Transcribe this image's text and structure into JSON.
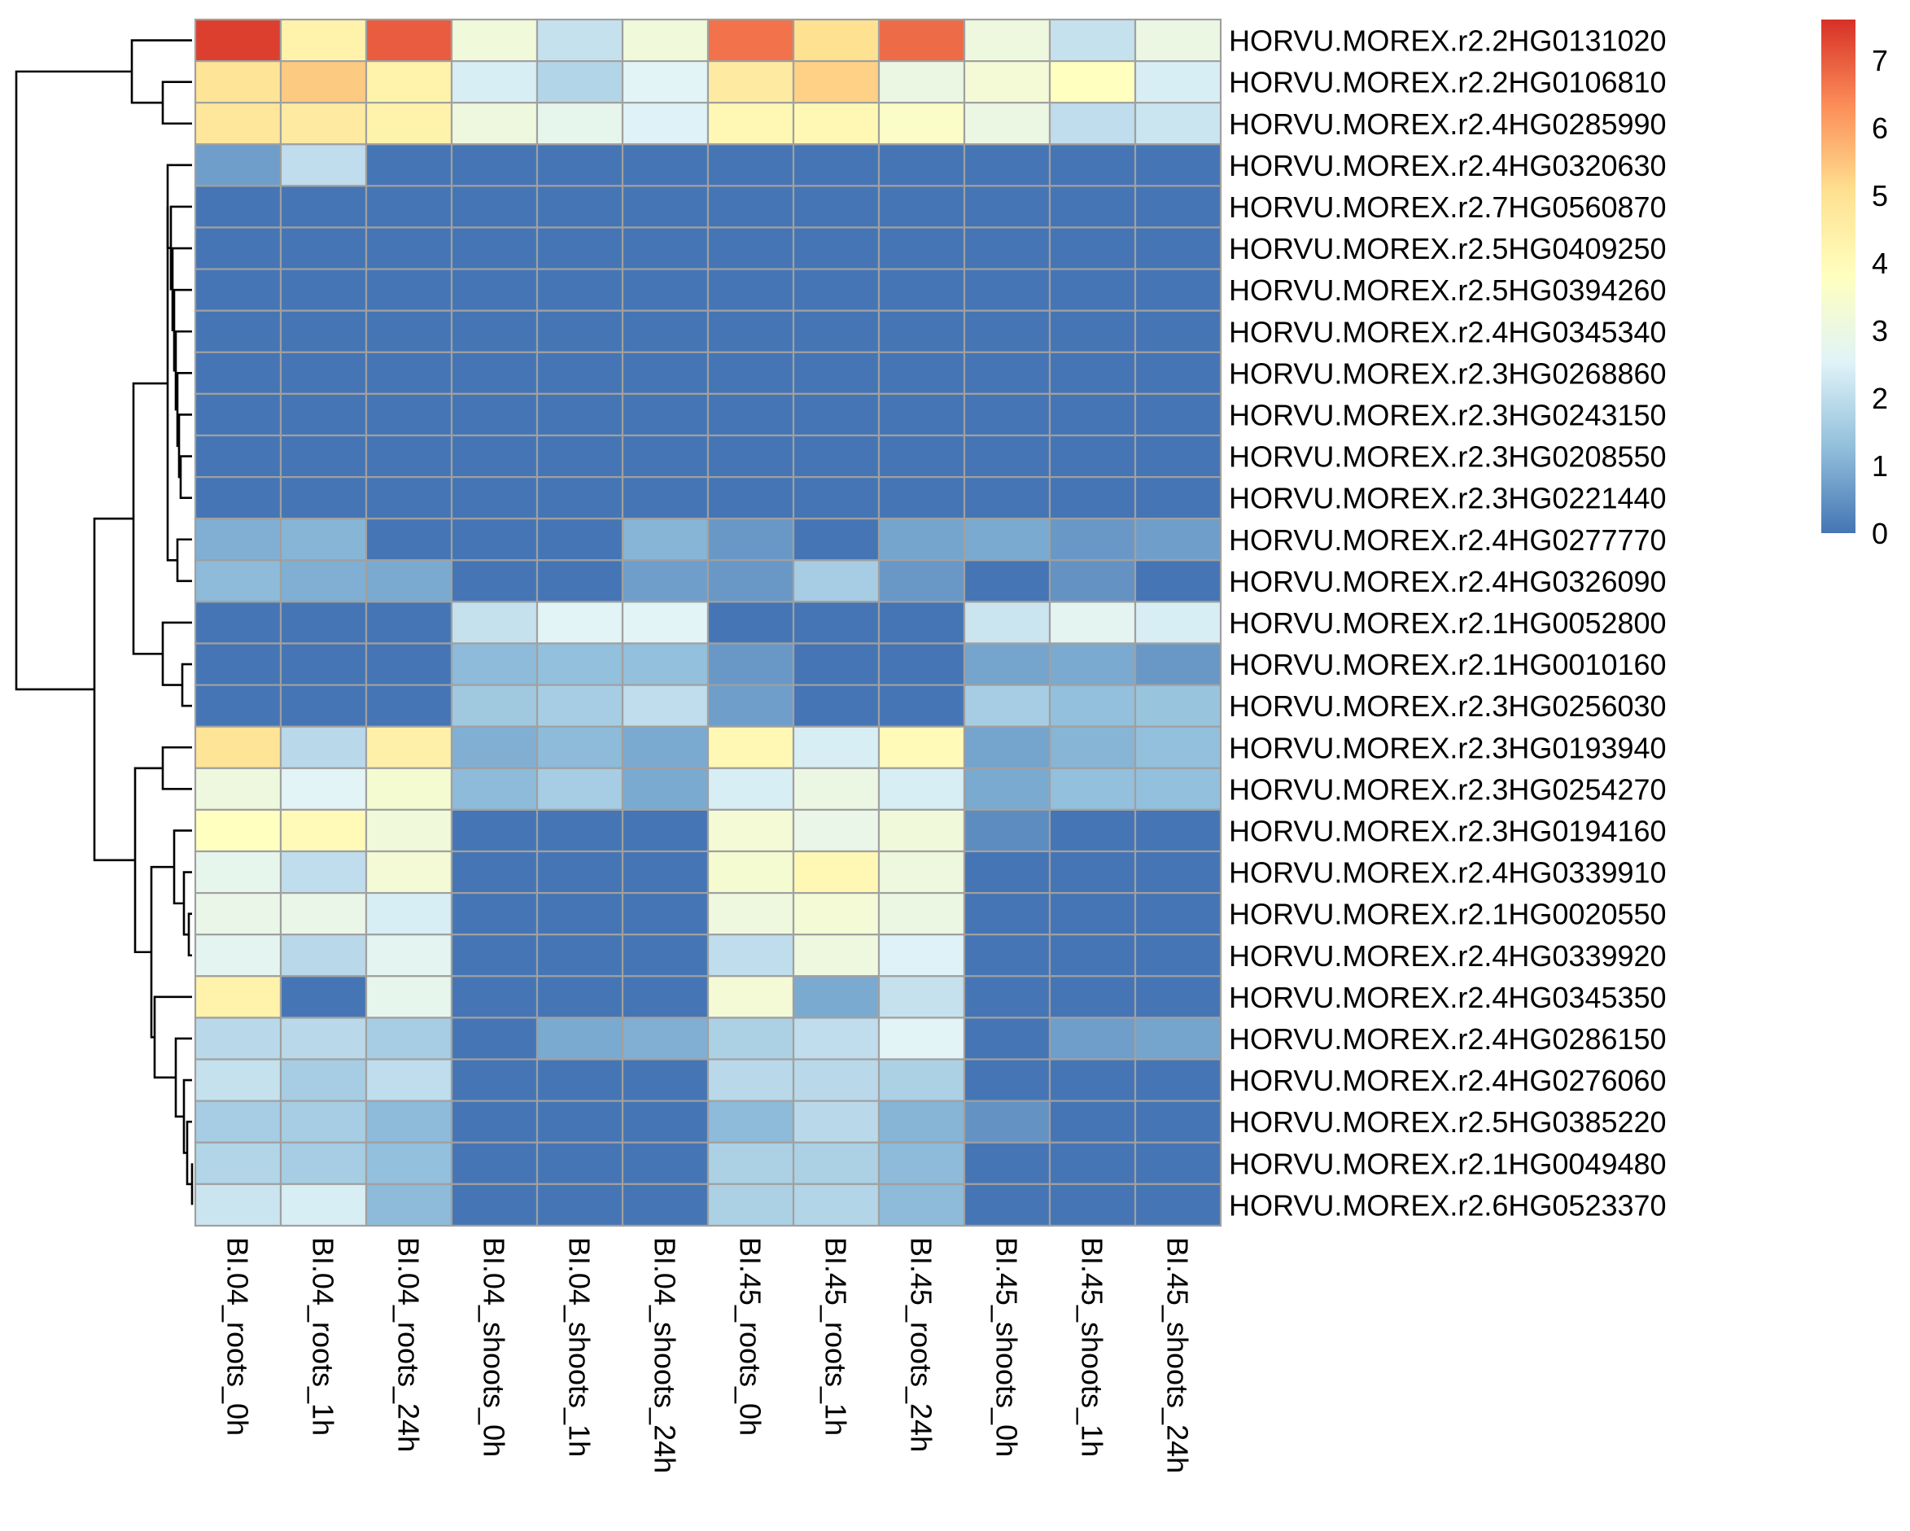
{
  "chart_data": {
    "type": "heatmap",
    "title": "",
    "xlabel": "",
    "ylabel": "",
    "columns": [
      "BI.04_roots_0h",
      "BI.04_roots_1h",
      "BI.04_roots_24h",
      "BI.04_shoots_0h",
      "BI.04_shoots_1h",
      "BI.04_shoots_24h",
      "BI.45_roots_0h",
      "BI.45_roots_1h",
      "BI.45_roots_24h",
      "BI.45_shoots_0h",
      "BI.45_shoots_1h",
      "BI.45_shoots_24h"
    ],
    "rows": [
      "HORVU.MOREX.r2.2HG0131020",
      "HORVU.MOREX.r2.2HG0106810",
      "HORVU.MOREX.r2.4HG0285990",
      "HORVU.MOREX.r2.4HG0320630",
      "HORVU.MOREX.r2.7HG0560870",
      "HORVU.MOREX.r2.5HG0409250",
      "HORVU.MOREX.r2.5HG0394260",
      "HORVU.MOREX.r2.4HG0345340",
      "HORVU.MOREX.r2.3HG0268860",
      "HORVU.MOREX.r2.3HG0243150",
      "HORVU.MOREX.r2.3HG0208550",
      "HORVU.MOREX.r2.3HG0221440",
      "HORVU.MOREX.r2.4HG0277770",
      "HORVU.MOREX.r2.4HG0326090",
      "HORVU.MOREX.r2.1HG0052800",
      "HORVU.MOREX.r2.1HG0010160",
      "HORVU.MOREX.r2.3HG0256030",
      "HORVU.MOREX.r2.3HG0193940",
      "HORVU.MOREX.r2.3HG0254270",
      "HORVU.MOREX.r2.3HG0194160",
      "HORVU.MOREX.r2.4HG0339910",
      "HORVU.MOREX.r2.1HG0020550",
      "HORVU.MOREX.r2.4HG0339920",
      "HORVU.MOREX.r2.4HG0345350",
      "HORVU.MOREX.r2.4HG0286150",
      "HORVU.MOREX.r2.4HG0276060",
      "HORVU.MOREX.r2.5HG0385220",
      "HORVU.MOREX.r2.1HG0049480",
      "HORVU.MOREX.r2.6HG0523370"
    ],
    "values": [
      [
        7.4,
        4.3,
        7.0,
        3.2,
        2.1,
        3.2,
        6.7,
        5.0,
        6.8,
        3.1,
        2.1,
        3.0
      ],
      [
        4.9,
        5.4,
        4.3,
        2.4,
        1.8,
        2.6,
        4.6,
        5.3,
        3.0,
        3.3,
        3.8,
        2.4
      ],
      [
        4.8,
        4.6,
        4.3,
        3.1,
        2.8,
        2.5,
        4.1,
        4.1,
        3.6,
        3.0,
        2.0,
        2.2
      ],
      [
        0.7,
        2.0,
        0.0,
        0.0,
        0.0,
        0.0,
        0.0,
        0.0,
        0.0,
        0.0,
        0.0,
        0.0
      ],
      [
        0.0,
        0.0,
        0.0,
        0.0,
        0.0,
        0.0,
        0.0,
        0.0,
        0.0,
        0.0,
        0.0,
        0.0
      ],
      [
        0.0,
        0.0,
        0.0,
        0.0,
        0.0,
        0.0,
        0.0,
        0.0,
        0.0,
        0.0,
        0.0,
        0.0
      ],
      [
        0.0,
        0.0,
        0.0,
        0.0,
        0.0,
        0.0,
        0.0,
        0.0,
        0.0,
        0.0,
        0.0,
        0.0
      ],
      [
        0.0,
        0.0,
        0.0,
        0.0,
        0.0,
        0.0,
        0.0,
        0.0,
        0.0,
        0.0,
        0.0,
        0.0
      ],
      [
        0.0,
        0.0,
        0.0,
        0.0,
        0.0,
        0.0,
        0.0,
        0.0,
        0.0,
        0.0,
        0.0,
        0.0
      ],
      [
        0.0,
        0.0,
        0.0,
        0.0,
        0.0,
        0.0,
        0.0,
        0.0,
        0.0,
        0.0,
        0.0,
        0.0
      ],
      [
        0.0,
        0.0,
        0.0,
        0.0,
        0.0,
        0.0,
        0.0,
        0.0,
        0.0,
        0.0,
        0.0,
        0.0
      ],
      [
        0.0,
        0.0,
        0.0,
        0.0,
        0.0,
        0.0,
        0.0,
        0.0,
        0.0,
        0.0,
        0.0,
        0.0
      ],
      [
        1.0,
        1.1,
        0.0,
        0.0,
        0.0,
        1.1,
        0.6,
        0.0,
        0.8,
        0.9,
        0.6,
        0.7
      ],
      [
        1.2,
        1.0,
        0.9,
        0.0,
        0.0,
        0.7,
        0.6,
        1.6,
        0.6,
        0.0,
        0.5,
        0.0
      ],
      [
        0.0,
        0.0,
        0.0,
        2.1,
        2.6,
        2.6,
        0.0,
        0.0,
        0.0,
        2.2,
        2.7,
        2.4
      ],
      [
        0.0,
        0.0,
        0.0,
        1.2,
        1.3,
        1.3,
        0.6,
        0.0,
        0.0,
        0.8,
        0.9,
        0.6
      ],
      [
        0.0,
        0.0,
        0.0,
        1.5,
        1.6,
        2.0,
        0.7,
        0.0,
        0.0,
        1.6,
        1.3,
        1.4
      ],
      [
        4.9,
        1.9,
        4.4,
        1.0,
        1.2,
        0.9,
        4.1,
        2.4,
        4.0,
        0.8,
        1.1,
        1.3
      ],
      [
        3.1,
        2.6,
        3.4,
        1.2,
        1.6,
        0.9,
        2.4,
        3.0,
        2.4,
        0.9,
        1.3,
        1.3
      ],
      [
        3.8,
        4.0,
        3.2,
        0.0,
        0.0,
        0.0,
        3.3,
        2.9,
        3.2,
        0.4,
        0.0,
        0.0
      ],
      [
        2.8,
        2.0,
        3.3,
        0.0,
        0.0,
        0.0,
        3.4,
        4.1,
        3.1,
        0.0,
        0.0,
        0.0
      ],
      [
        2.9,
        2.9,
        2.4,
        0.0,
        0.0,
        0.0,
        3.1,
        3.3,
        3.0,
        0.0,
        0.0,
        0.0
      ],
      [
        2.7,
        1.9,
        2.7,
        0.0,
        0.0,
        0.0,
        2.0,
        3.1,
        2.5,
        0.0,
        0.0,
        0.0
      ],
      [
        4.3,
        0.0,
        2.8,
        0.0,
        0.0,
        0.0,
        3.3,
        0.9,
        2.1,
        0.0,
        0.0,
        0.0
      ],
      [
        1.9,
        1.9,
        1.6,
        0.0,
        0.9,
        1.0,
        1.7,
        2.0,
        2.6,
        0.0,
        0.7,
        0.8
      ],
      [
        2.1,
        1.6,
        2.0,
        0.0,
        0.0,
        0.0,
        1.9,
        1.9,
        1.7,
        0.0,
        0.0,
        0.0
      ],
      [
        1.6,
        1.6,
        1.2,
        0.0,
        0.0,
        0.0,
        1.2,
        1.9,
        1.1,
        0.5,
        0.0,
        0.0
      ],
      [
        1.8,
        1.6,
        1.3,
        0.0,
        0.0,
        0.0,
        1.7,
        1.7,
        1.2,
        0.0,
        0.0,
        0.0
      ],
      [
        2.2,
        2.4,
        1.2,
        0.0,
        0.0,
        0.0,
        1.7,
        1.8,
        1.2,
        0.0,
        0.0,
        0.0
      ]
    ],
    "colorscale": {
      "min": 0,
      "max": 7.6,
      "colors": [
        "#4575b4",
        "#91bfdb",
        "#e0f3f8",
        "#ffffbf",
        "#fee090",
        "#fc8d59",
        "#d73027"
      ],
      "ticks": [
        0,
        1,
        2,
        3,
        4,
        5,
        6,
        7
      ]
    },
    "cell_border_color": "#a0a0a0",
    "row_dendrogram": true,
    "column_dendrogram": false
  }
}
